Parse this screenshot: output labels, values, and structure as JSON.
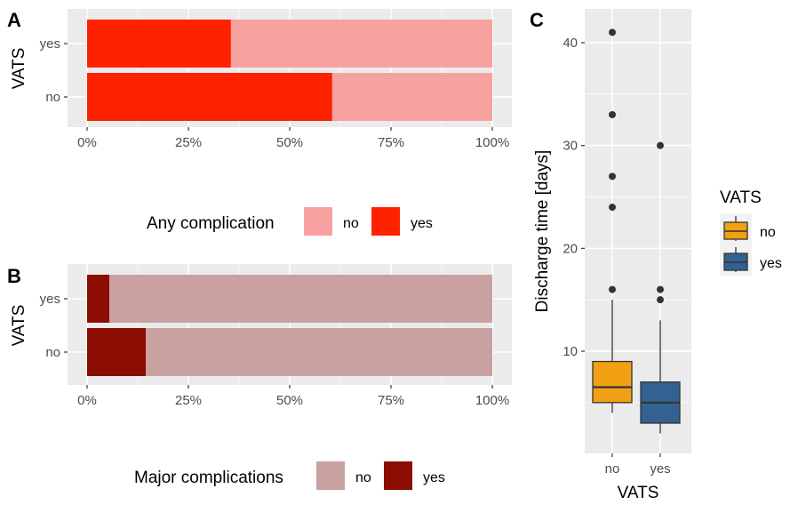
{
  "panel_labels": {
    "a": "A",
    "b": "B",
    "c": "C"
  },
  "chart_data": [
    {
      "panel": "A",
      "type": "bar",
      "orientation": "horizontal",
      "stacked": "percent",
      "ylabel": "VATS",
      "categories": [
        "yes",
        "no"
      ],
      "series": [
        {
          "name": "no",
          "color": "#f8a1a1",
          "values": [
            64.5,
            39.5
          ]
        },
        {
          "name": "yes",
          "color": "#ff2200",
          "values": [
            35.5,
            60.5
          ]
        }
      ],
      "xlim": [
        0,
        100
      ],
      "ticks": [
        "0%",
        "25%",
        "50%",
        "75%",
        "100%"
      ],
      "legend": {
        "title": "Any complication",
        "position": "bottom"
      },
      "grid": true
    },
    {
      "panel": "B",
      "type": "bar",
      "orientation": "horizontal",
      "stacked": "percent",
      "ylabel": "VATS",
      "categories": [
        "yes",
        "no"
      ],
      "series": [
        {
          "name": "no",
          "color": "#c9a1a1",
          "values": [
            94.5,
            85.5
          ]
        },
        {
          "name": "yes",
          "color": "#8b0c00",
          "values": [
            5.5,
            14.5
          ]
        }
      ],
      "xlim": [
        0,
        100
      ],
      "ticks": [
        "0%",
        "25%",
        "50%",
        "75%",
        "100%"
      ],
      "legend": {
        "title": "Major complications",
        "position": "bottom"
      },
      "grid": true
    },
    {
      "panel": "C",
      "type": "box",
      "xlabel": "VATS",
      "ylabel": "Discharge time [days]",
      "categories": [
        "no",
        "yes"
      ],
      "colors": [
        "#f2a013",
        "#336191"
      ],
      "boxes": [
        {
          "min": 4,
          "q1": 5,
          "median": 6.5,
          "q3": 9,
          "max": 15,
          "outliers": [
            16,
            24,
            27,
            33,
            41
          ]
        },
        {
          "min": 2,
          "q1": 3,
          "median": 5,
          "q3": 7,
          "max": 13,
          "outliers": [
            15,
            16,
            30
          ]
        }
      ],
      "ylim": [
        1,
        43
      ],
      "yticks": [
        10,
        20,
        30,
        40
      ],
      "legend": {
        "title": "VATS",
        "position": "right",
        "labels": [
          "no",
          "yes"
        ]
      },
      "grid": true
    }
  ]
}
